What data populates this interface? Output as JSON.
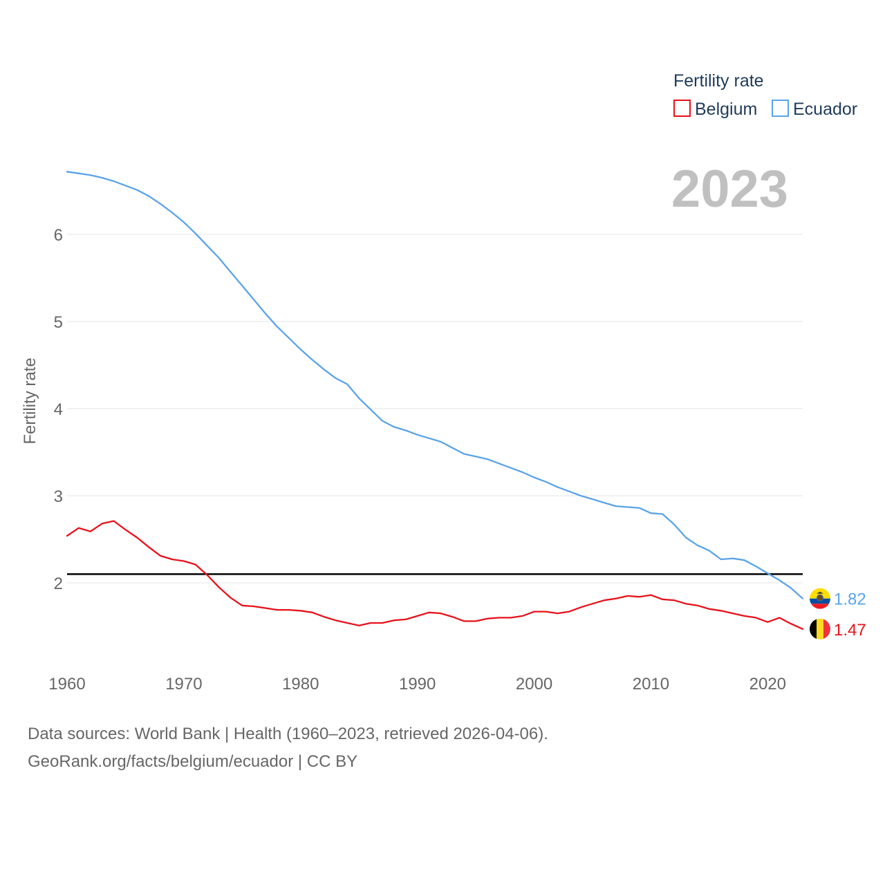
{
  "chart_data": {
    "type": "line",
    "title": "",
    "legend_title": "Fertility rate",
    "ylabel": "Fertility rate",
    "xlabel": "",
    "current_year": "2023",
    "x_range": [
      1960,
      2023
    ],
    "ylim": [
      1,
      7
    ],
    "y_ticks": [
      2,
      3,
      4,
      5,
      6
    ],
    "x_ticks": [
      1960,
      1970,
      1980,
      1990,
      2000,
      2010,
      2020
    ],
    "reference_line": 2.1,
    "legend_position": "top-right",
    "x": [
      1960,
      1961,
      1962,
      1963,
      1964,
      1965,
      1966,
      1967,
      1968,
      1969,
      1970,
      1971,
      1972,
      1973,
      1974,
      1975,
      1976,
      1977,
      1978,
      1979,
      1980,
      1981,
      1982,
      1983,
      1984,
      1985,
      1986,
      1987,
      1988,
      1989,
      1990,
      1991,
      1992,
      1993,
      1994,
      1995,
      1996,
      1997,
      1998,
      1999,
      2000,
      2001,
      2002,
      2003,
      2004,
      2005,
      2006,
      2007,
      2008,
      2009,
      2010,
      2011,
      2012,
      2013,
      2014,
      2015,
      2016,
      2017,
      2018,
      2019,
      2020,
      2021,
      2022,
      2023
    ],
    "series": [
      {
        "name": "Belgium",
        "color": "#e8111a",
        "end_label": "1.47",
        "flag": "belgium",
        "values": [
          2.54,
          2.63,
          2.59,
          2.68,
          2.71,
          2.61,
          2.52,
          2.41,
          2.31,
          2.27,
          2.25,
          2.21,
          2.09,
          1.95,
          1.83,
          1.74,
          1.73,
          1.71,
          1.69,
          1.69,
          1.68,
          1.66,
          1.61,
          1.57,
          1.54,
          1.51,
          1.54,
          1.54,
          1.57,
          1.58,
          1.62,
          1.66,
          1.65,
          1.61,
          1.56,
          1.56,
          1.59,
          1.6,
          1.6,
          1.62,
          1.67,
          1.67,
          1.65,
          1.67,
          1.72,
          1.76,
          1.8,
          1.82,
          1.85,
          1.84,
          1.86,
          1.81,
          1.8,
          1.76,
          1.74,
          1.7,
          1.68,
          1.65,
          1.62,
          1.6,
          1.55,
          1.6,
          1.53,
          1.47
        ]
      },
      {
        "name": "Ecuador",
        "color": "#5aa3e8",
        "end_label": "1.82",
        "flag": "ecuador",
        "values": [
          6.72,
          6.7,
          6.68,
          6.65,
          6.61,
          6.56,
          6.51,
          6.44,
          6.35,
          6.25,
          6.14,
          6.01,
          5.87,
          5.73,
          5.57,
          5.41,
          5.25,
          5.09,
          4.94,
          4.81,
          4.68,
          4.56,
          4.45,
          4.35,
          4.28,
          4.12,
          3.99,
          3.86,
          3.79,
          3.75,
          3.7,
          3.66,
          3.62,
          3.55,
          3.48,
          3.45,
          3.42,
          3.37,
          3.32,
          3.27,
          3.21,
          3.16,
          3.1,
          3.05,
          3.0,
          2.96,
          2.92,
          2.88,
          2.87,
          2.86,
          2.8,
          2.79,
          2.67,
          2.52,
          2.43,
          2.37,
          2.27,
          2.28,
          2.26,
          2.19,
          2.11,
          2.03,
          1.94,
          1.82
        ]
      }
    ]
  },
  "footer": {
    "line1": "Data sources: World Bank | Health (1960–2023, retrieved 2026-04-06).",
    "line2": "GeoRank.org/facts/belgium/ecuador | CC BY"
  }
}
